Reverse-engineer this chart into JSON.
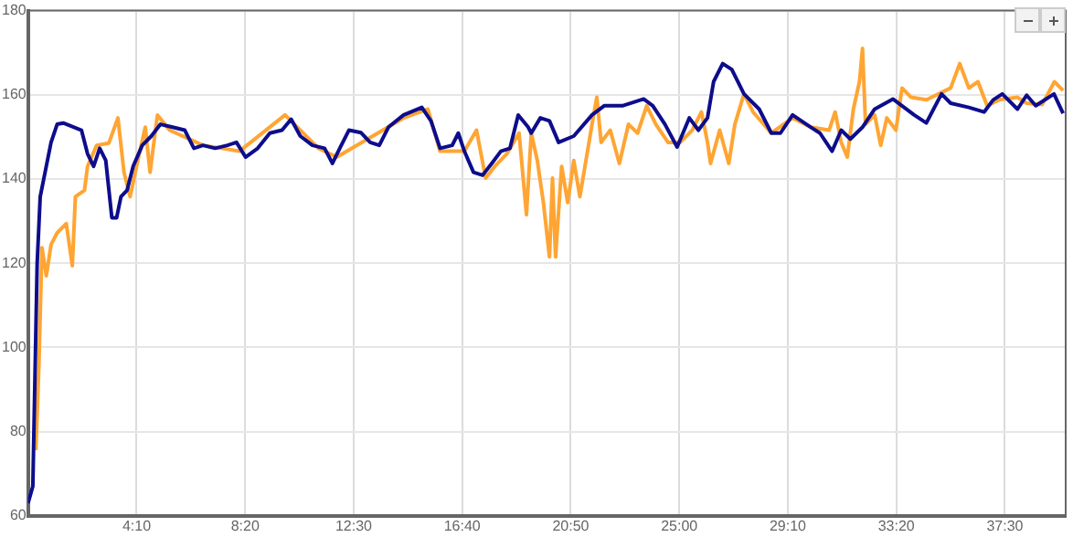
{
  "chart_data": {
    "type": "line",
    "xlim": [
      0,
      2390
    ],
    "ylim": [
      60,
      180
    ],
    "xticks": [
      {
        "value": 250,
        "label": "4:10"
      },
      {
        "value": 500,
        "label": "8:20"
      },
      {
        "value": 750,
        "label": "12:30"
      },
      {
        "value": 1000,
        "label": "16:40"
      },
      {
        "value": 1250,
        "label": "20:50"
      },
      {
        "value": 1500,
        "label": "25:00"
      },
      {
        "value": 1750,
        "label": "29:10"
      },
      {
        "value": 2000,
        "label": "33:20"
      },
      {
        "value": 2250,
        "label": "37:30"
      }
    ],
    "yticks": [
      60,
      80,
      100,
      120,
      140,
      160,
      180
    ],
    "grid": true,
    "legend": false,
    "marker": "none",
    "line_style": "solid",
    "series": [
      {
        "color": "#ffa533",
        "x": [
          18,
          25,
          32,
          42,
          53,
          67,
          88,
          102,
          109,
          130,
          137,
          158,
          186,
          207,
          221,
          235,
          256,
          270,
          281,
          298,
          326,
          403,
          487,
          592,
          669,
          711,
          865,
          921,
          949,
          1005,
          1033,
          1054,
          1075,
          1103,
          1131,
          1148,
          1159,
          1173,
          1187,
          1201,
          1208,
          1215,
          1229,
          1243,
          1257,
          1271,
          1285,
          1299,
          1310,
          1320,
          1341,
          1362,
          1383,
          1404,
          1425,
          1446,
          1474,
          1502,
          1530,
          1551,
          1565,
          1572,
          1593,
          1614,
          1628,
          1649,
          1670,
          1712,
          1761,
          1803,
          1845,
          1859,
          1873,
          1887,
          1901,
          1915,
          1922,
          1929,
          1950,
          1964,
          1978,
          1999,
          2013,
          2034,
          2069,
          2097,
          2125,
          2146,
          2167,
          2188,
          2209,
          2237,
          2279,
          2300,
          2336,
          2364,
          2384
        ],
        "values": [
          75.6,
          95.7,
          123.7,
          117,
          124.4,
          127.2,
          129.4,
          119.4,
          135.8,
          137.3,
          143,
          148,
          148.5,
          154.5,
          141.6,
          135.8,
          145.9,
          152.3,
          141.6,
          155.2,
          151.6,
          148,
          146.6,
          155.2,
          147.3,
          145.2,
          154.5,
          156.6,
          146.6,
          146.6,
          151.6,
          140.2,
          143,
          146,
          150.9,
          131.5,
          150.9,
          144.4,
          134.4,
          121.5,
          140.2,
          121.5,
          143,
          134.4,
          144.4,
          135.8,
          144.4,
          153,
          159.4,
          148.7,
          151.6,
          143.7,
          153,
          150.9,
          157.4,
          153,
          148.7,
          148.7,
          151.6,
          155.9,
          148.7,
          143.7,
          151.6,
          143.7,
          153,
          160.2,
          155.9,
          150.9,
          154.5,
          152.3,
          151.6,
          155.9,
          148.7,
          145.2,
          156.6,
          163.1,
          171,
          153,
          155.2,
          148,
          154.5,
          151.6,
          161.6,
          159.4,
          158.8,
          160.2,
          161.6,
          167.4,
          161.6,
          163.1,
          157.4,
          158.8,
          159.4,
          158,
          157.7,
          163.1,
          161
        ]
      },
      {
        "color": "#0d0d8c",
        "x": [
          0,
          11,
          21,
          28,
          53,
          67,
          81,
          123,
          137,
          151,
          165,
          179,
          193,
          204,
          214,
          228,
          242,
          263,
          284,
          305,
          333,
          361,
          382,
          403,
          431,
          459,
          480,
          501,
          529,
          557,
          585,
          606,
          627,
          655,
          683,
          701,
          718,
          739,
          767,
          788,
          809,
          830,
          865,
          907,
          928,
          949,
          977,
          991,
          1005,
          1026,
          1047,
          1068,
          1089,
          1110,
          1129,
          1152,
          1159,
          1180,
          1201,
          1222,
          1257,
          1299,
          1327,
          1369,
          1418,
          1439,
          1467,
          1495,
          1523,
          1544,
          1565,
          1579,
          1600,
          1621,
          1649,
          1684,
          1712,
          1733,
          1761,
          1803,
          1824,
          1852,
          1873,
          1894,
          1922,
          1950,
          1992,
          2013,
          2041,
          2069,
          2104,
          2125,
          2167,
          2202,
          2223,
          2244,
          2279,
          2300,
          2321,
          2363,
          2384
        ],
        "values": [
          63,
          67,
          120,
          135.8,
          148.7,
          153,
          153.3,
          151.6,
          146,
          143,
          147.3,
          144.4,
          130.8,
          130.8,
          135.8,
          137.3,
          143,
          148,
          150.2,
          153,
          152.3,
          151.6,
          147.3,
          148,
          147.3,
          148,
          148.7,
          145.2,
          147.3,
          150.9,
          151.6,
          154.2,
          150.2,
          148,
          147.3,
          143.7,
          147.3,
          151.6,
          151,
          148.7,
          148,
          152.3,
          155.2,
          157,
          153.8,
          147.3,
          148,
          150.9,
          146.6,
          141.6,
          140.9,
          143.7,
          146.6,
          147.3,
          155.2,
          152.3,
          150.9,
          154.5,
          153.8,
          148.7,
          150.2,
          155.2,
          157.4,
          157.4,
          159,
          157.4,
          153,
          147.6,
          154.5,
          151.6,
          154.5,
          163.1,
          167.4,
          166,
          160.2,
          156.6,
          150.9,
          150.9,
          155.2,
          152.3,
          150.9,
          146.6,
          151.6,
          149.5,
          152.3,
          156.6,
          159,
          157.4,
          155.2,
          153.3,
          160.2,
          158,
          157,
          155.9,
          158.8,
          160.2,
          156.6,
          159.9,
          157.4,
          160.2,
          155.6
        ]
      }
    ]
  }
}
